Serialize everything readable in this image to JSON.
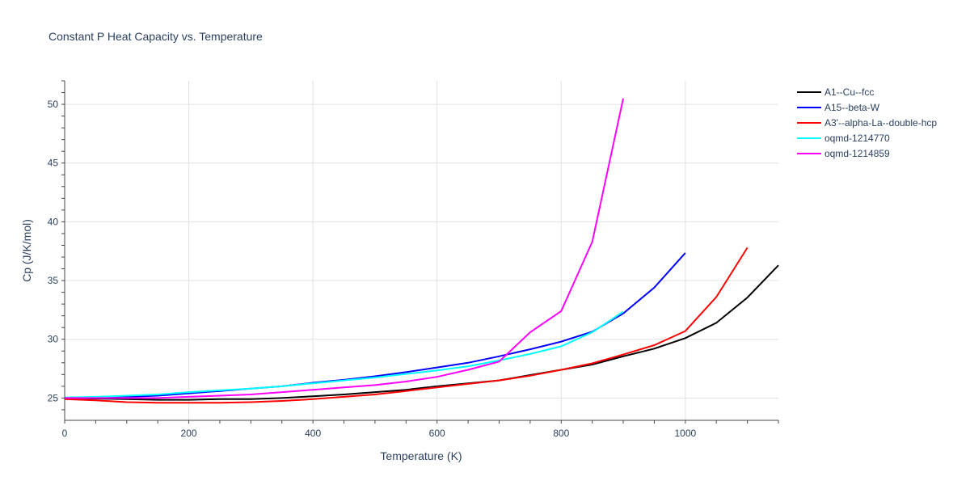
{
  "chart_data": {
    "type": "line",
    "title": "Constant P Heat Capacity vs. Temperature",
    "xlabel": "Temperature (K)",
    "ylabel": "Cp (J/K/mol)",
    "xlim": [
      0,
      1150
    ],
    "ylim": [
      23.1,
      52
    ],
    "xticks": [
      0,
      200,
      400,
      600,
      800,
      1000
    ],
    "yticks": [
      25,
      30,
      35,
      40,
      45,
      50
    ],
    "grid": true,
    "legend_position": "top-right",
    "series": [
      {
        "name": "A1--Cu--fcc",
        "color": "#000000",
        "x": [
          0,
          50,
          100,
          150,
          200,
          250,
          300,
          350,
          400,
          450,
          500,
          550,
          600,
          650,
          700,
          750,
          800,
          850,
          900,
          950,
          1000,
          1050,
          1100,
          1150
        ],
        "y": [
          25.0,
          24.95,
          24.9,
          24.85,
          24.85,
          24.9,
          24.9,
          25.0,
          25.15,
          25.3,
          25.5,
          25.7,
          26.0,
          26.25,
          26.5,
          26.95,
          27.4,
          27.85,
          28.55,
          29.2,
          30.1,
          31.4,
          33.55,
          36.3
        ]
      },
      {
        "name": "A15--beta-W",
        "color": "#0000ff",
        "x": [
          0,
          50,
          100,
          150,
          200,
          250,
          300,
          350,
          400,
          450,
          500,
          550,
          600,
          650,
          700,
          750,
          800,
          850,
          900,
          950,
          1000
        ],
        "y": [
          25.0,
          25.05,
          25.1,
          25.2,
          25.4,
          25.6,
          25.8,
          26.0,
          26.3,
          26.55,
          26.85,
          27.2,
          27.6,
          28.0,
          28.55,
          29.15,
          29.8,
          30.65,
          32.2,
          34.4,
          37.35
        ]
      },
      {
        "name": "A3'--alpha-La--double-hcp",
        "color": "#ff0000",
        "x": [
          0,
          50,
          100,
          150,
          200,
          250,
          300,
          350,
          400,
          450,
          500,
          550,
          600,
          650,
          700,
          750,
          800,
          850,
          900,
          950,
          1000,
          1050,
          1100
        ],
        "y": [
          24.9,
          24.8,
          24.65,
          24.6,
          24.6,
          24.6,
          24.65,
          24.75,
          24.9,
          25.1,
          25.3,
          25.6,
          25.9,
          26.2,
          26.5,
          26.9,
          27.4,
          27.95,
          28.7,
          29.5,
          30.7,
          33.6,
          37.8
        ]
      },
      {
        "name": "oqmd-1214770",
        "color": "#00ffff",
        "x": [
          0,
          50,
          100,
          150,
          200,
          250,
          300,
          350,
          400,
          450,
          500,
          550,
          600,
          650,
          700,
          750,
          800,
          850,
          900
        ],
        "y": [
          25.05,
          25.1,
          25.2,
          25.3,
          25.5,
          25.65,
          25.8,
          26.0,
          26.25,
          26.5,
          26.75,
          27.05,
          27.35,
          27.7,
          28.2,
          28.75,
          29.4,
          30.6,
          32.35
        ]
      },
      {
        "name": "oqmd-1214859",
        "color": "#ff00ff",
        "x": [
          0,
          50,
          100,
          150,
          200,
          250,
          300,
          350,
          400,
          450,
          500,
          550,
          600,
          650,
          700,
          750,
          800,
          850,
          900
        ],
        "y": [
          25.0,
          25.0,
          25.0,
          25.0,
          25.1,
          25.2,
          25.3,
          25.5,
          25.7,
          25.9,
          26.1,
          26.4,
          26.8,
          27.4,
          28.1,
          30.6,
          32.4,
          38.3,
          50.5
        ]
      }
    ]
  }
}
